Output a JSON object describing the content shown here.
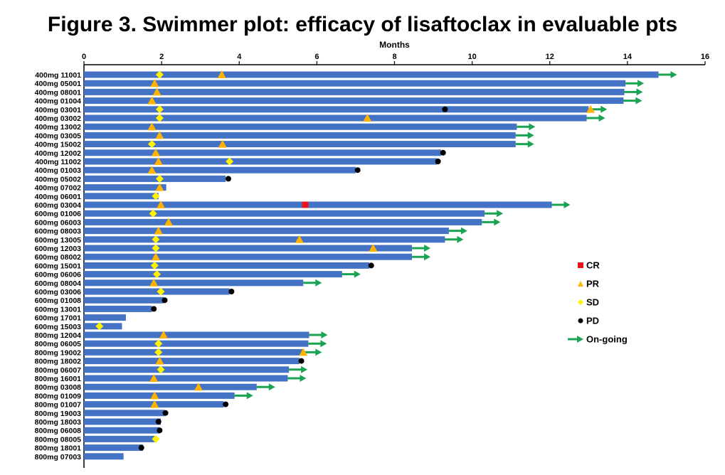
{
  "chart_data": {
    "type": "swimmer",
    "title": "Figure 3. Swimmer plot: efficacy of lisaftoclax in evaluable pts",
    "xlabel": "Months",
    "xlim": [
      0,
      16
    ],
    "xticks": [
      0,
      2,
      4,
      6,
      8,
      10,
      12,
      14,
      16
    ],
    "colors": {
      "bar": "#4472C4",
      "CR": "#E8141B",
      "PR": "#FFB300",
      "SD": "#FFF200",
      "PD": "#000000",
      "ongoing": "#1AA352"
    },
    "legend": {
      "position": "right",
      "items": [
        {
          "key": "CR",
          "label": "CR"
        },
        {
          "key": "PR",
          "label": "PR"
        },
        {
          "key": "SD",
          "label": "SD"
        },
        {
          "key": "PD",
          "label": "PD"
        },
        {
          "key": "ongoing",
          "label": "On-going"
        }
      ]
    },
    "patients": [
      {
        "label": "400mg 11001",
        "duration": 14.8,
        "ongoing": true,
        "events": [
          {
            "type": "SD",
            "x": 1.95
          },
          {
            "type": "PR",
            "x": 3.55
          }
        ]
      },
      {
        "label": "400mg 05001",
        "duration": 13.95,
        "ongoing": true,
        "events": [
          {
            "type": "PR",
            "x": 1.82
          }
        ]
      },
      {
        "label": "400mg 08001",
        "duration": 13.92,
        "ongoing": true,
        "events": [
          {
            "type": "PR",
            "x": 1.88
          }
        ]
      },
      {
        "label": "400mg 01004",
        "duration": 13.9,
        "ongoing": true,
        "events": [
          {
            "type": "PR",
            "x": 1.75
          }
        ]
      },
      {
        "label": "400mg 03001",
        "duration": 13.0,
        "ongoing": true,
        "events": [
          {
            "type": "SD",
            "x": 1.95
          },
          {
            "type": "PD",
            "x": 9.3
          },
          {
            "type": "PR",
            "x": 13.05
          }
        ]
      },
      {
        "label": "400mg 03002",
        "duration": 12.95,
        "ongoing": true,
        "events": [
          {
            "type": "SD",
            "x": 1.95
          },
          {
            "type": "PR",
            "x": 7.3
          }
        ]
      },
      {
        "label": "400mg 13002",
        "duration": 11.15,
        "ongoing": true,
        "events": [
          {
            "type": "PR",
            "x": 1.75
          }
        ]
      },
      {
        "label": "400mg 03005",
        "duration": 11.12,
        "ongoing": true,
        "events": [
          {
            "type": "PR",
            "x": 1.95
          }
        ]
      },
      {
        "label": "400mg 15002",
        "duration": 11.12,
        "ongoing": true,
        "events": [
          {
            "type": "SD",
            "x": 1.75
          },
          {
            "type": "PR",
            "x": 3.57
          }
        ]
      },
      {
        "label": "400mg 12002",
        "duration": 9.2,
        "ongoing": false,
        "events": [
          {
            "type": "PR",
            "x": 1.85
          },
          {
            "type": "PD",
            "x": 9.25
          }
        ]
      },
      {
        "label": "400mg 11002",
        "duration": 9.1,
        "ongoing": false,
        "events": [
          {
            "type": "PR",
            "x": 1.92
          },
          {
            "type": "SD",
            "x": 3.75
          },
          {
            "type": "PD",
            "x": 9.12
          }
        ]
      },
      {
        "label": "400mg 01003",
        "duration": 7.0,
        "ongoing": false,
        "events": [
          {
            "type": "PR",
            "x": 1.75
          },
          {
            "type": "PD",
            "x": 7.05
          }
        ]
      },
      {
        "label": "400mg 05002",
        "duration": 3.65,
        "ongoing": false,
        "events": [
          {
            "type": "SD",
            "x": 1.95
          },
          {
            "type": "PD",
            "x": 3.72
          }
        ]
      },
      {
        "label": "400mg 07002",
        "duration": 2.12,
        "ongoing": false,
        "events": [
          {
            "type": "PR",
            "x": 1.95
          }
        ]
      },
      {
        "label": "400mg 06001",
        "duration": 1.92,
        "ongoing": false,
        "events": [
          {
            "type": "SD",
            "x": 1.85
          }
        ]
      },
      {
        "label": "600mg 03004",
        "duration": 12.05,
        "ongoing": true,
        "events": [
          {
            "type": "PR",
            "x": 1.98
          },
          {
            "type": "CR",
            "x": 5.7
          }
        ]
      },
      {
        "label": "600mg 01006",
        "duration": 10.32,
        "ongoing": true,
        "events": [
          {
            "type": "SD",
            "x": 1.78
          }
        ]
      },
      {
        "label": "600mg 06003",
        "duration": 10.25,
        "ongoing": true,
        "events": [
          {
            "type": "PR",
            "x": 2.18
          }
        ]
      },
      {
        "label": "600mg 08003",
        "duration": 9.4,
        "ongoing": true,
        "events": [
          {
            "type": "PR",
            "x": 1.92
          }
        ]
      },
      {
        "label": "600mg 13005",
        "duration": 9.3,
        "ongoing": true,
        "events": [
          {
            "type": "SD",
            "x": 1.85
          },
          {
            "type": "PR",
            "x": 5.55
          }
        ]
      },
      {
        "label": "600mg 12003",
        "duration": 8.45,
        "ongoing": true,
        "events": [
          {
            "type": "SD",
            "x": 1.85
          },
          {
            "type": "PR",
            "x": 7.45
          }
        ]
      },
      {
        "label": "600mg 08002",
        "duration": 8.45,
        "ongoing": true,
        "events": [
          {
            "type": "PR",
            "x": 1.85
          }
        ]
      },
      {
        "label": "600mg 15001",
        "duration": 7.35,
        "ongoing": false,
        "events": [
          {
            "type": "SD",
            "x": 1.82
          },
          {
            "type": "PD",
            "x": 7.4
          }
        ]
      },
      {
        "label": "600mg 06006",
        "duration": 6.65,
        "ongoing": true,
        "events": [
          {
            "type": "SD",
            "x": 1.88
          }
        ]
      },
      {
        "label": "600mg 08004",
        "duration": 5.65,
        "ongoing": true,
        "events": [
          {
            "type": "PR",
            "x": 1.8
          }
        ]
      },
      {
        "label": "600mg 03006",
        "duration": 3.75,
        "ongoing": false,
        "events": [
          {
            "type": "SD",
            "x": 1.98
          },
          {
            "type": "PD",
            "x": 3.8
          }
        ]
      },
      {
        "label": "600mg 01008",
        "duration": 2.05,
        "ongoing": false,
        "events": [
          {
            "type": "PD",
            "x": 2.08
          }
        ]
      },
      {
        "label": "600mg 13001",
        "duration": 1.75,
        "ongoing": false,
        "events": [
          {
            "type": "PD",
            "x": 1.8
          }
        ]
      },
      {
        "label": "600mg 17001",
        "duration": 1.08,
        "ongoing": false,
        "events": []
      },
      {
        "label": "600mg 15003",
        "duration": 0.98,
        "ongoing": false,
        "events": [
          {
            "type": "SD",
            "x": 0.4
          }
        ]
      },
      {
        "label": "800mg 12004",
        "duration": 5.8,
        "ongoing": true,
        "events": [
          {
            "type": "PR",
            "x": 2.05
          }
        ]
      },
      {
        "label": "800mg 06005",
        "duration": 5.78,
        "ongoing": true,
        "events": [
          {
            "type": "SD",
            "x": 1.92
          }
        ]
      },
      {
        "label": "800mg 19002",
        "duration": 5.65,
        "ongoing": true,
        "events": [
          {
            "type": "SD",
            "x": 1.92
          },
          {
            "type": "PR",
            "x": 5.65
          }
        ]
      },
      {
        "label": "800mg 18002",
        "duration": 5.55,
        "ongoing": false,
        "events": [
          {
            "type": "PR",
            "x": 1.95
          },
          {
            "type": "PD",
            "x": 5.6
          }
        ]
      },
      {
        "label": "800mg 06007",
        "duration": 5.28,
        "ongoing": true,
        "events": [
          {
            "type": "SD",
            "x": 1.98
          }
        ]
      },
      {
        "label": "800mg 16001",
        "duration": 5.25,
        "ongoing": true,
        "events": [
          {
            "type": "PR",
            "x": 1.8
          }
        ]
      },
      {
        "label": "800mg 03008",
        "duration": 4.45,
        "ongoing": true,
        "events": [
          {
            "type": "PR",
            "x": 2.95
          }
        ]
      },
      {
        "label": "800mg 01009",
        "duration": 3.88,
        "ongoing": true,
        "events": [
          {
            "type": "PR",
            "x": 1.82
          }
        ]
      },
      {
        "label": "800mg 01007",
        "duration": 3.6,
        "ongoing": false,
        "events": [
          {
            "type": "PR",
            "x": 1.82
          },
          {
            "type": "PD",
            "x": 3.65
          }
        ]
      },
      {
        "label": "800mg 19003",
        "duration": 2.08,
        "ongoing": false,
        "events": [
          {
            "type": "PD",
            "x": 2.1
          }
        ]
      },
      {
        "label": "800mg 18003",
        "duration": 1.98,
        "ongoing": false,
        "events": [
          {
            "type": "PD",
            "x": 1.92
          }
        ]
      },
      {
        "label": "800mg 06008",
        "duration": 1.95,
        "ongoing": false,
        "events": [
          {
            "type": "PD",
            "x": 1.95
          }
        ]
      },
      {
        "label": "800mg 08005",
        "duration": 1.82,
        "ongoing": false,
        "events": [
          {
            "type": "SD",
            "x": 1.85
          }
        ]
      },
      {
        "label": "800mg 18001",
        "duration": 1.52,
        "ongoing": false,
        "events": [
          {
            "type": "PD",
            "x": 1.48
          }
        ]
      },
      {
        "label": "800mg 07003",
        "duration": 1.02,
        "ongoing": false,
        "events": []
      }
    ]
  }
}
